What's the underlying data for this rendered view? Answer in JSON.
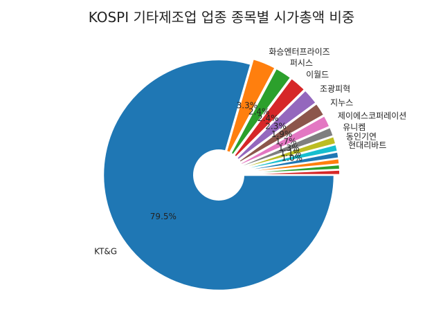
{
  "chart_data": {
    "type": "pie",
    "title": "KOSPI 기타제조업 업종 종목별 시가총액 비중",
    "categories": [
      "KT&G",
      "화승엔터프라이즈",
      "퍼시스",
      "이월드",
      "조광피혁",
      "지누스",
      "제이에스코퍼레이션",
      "유니켐",
      "동인기연",
      "현대리바트",
      "",
      "",
      "",
      ""
    ],
    "values": [
      79.5,
      3.3,
      2.4,
      2.4,
      2.3,
      1.9,
      1.7,
      1.3,
      1.1,
      1.0,
      0.9,
      0.8,
      0.7,
      0.7
    ],
    "percent_labels": [
      "79.5%",
      "3.3%",
      "2.4%",
      "2.4%",
      "2.3%",
      "1.9%",
      "1.7%",
      "1.3%",
      "1.1%",
      "1.0%",
      "",
      "",
      "",
      ""
    ],
    "colors": [
      "#1f77b4",
      "#ff7f0e",
      "#2ca02c",
      "#d62728",
      "#9467bd",
      "#8c564b",
      "#e377c2",
      "#7f7f7f",
      "#bcbd22",
      "#17becf",
      "#1f77b4",
      "#ff7f0e",
      "#2ca02c",
      "#d62728"
    ],
    "explode": [
      0,
      0.05,
      0.05,
      0.05,
      0.05,
      0.05,
      0.05,
      0.05,
      0.05,
      0.05,
      0.05,
      0.05,
      0.05,
      0.05
    ],
    "donut_hole": true,
    "start_angle_deg": 0,
    "direction": "clockwise"
  }
}
